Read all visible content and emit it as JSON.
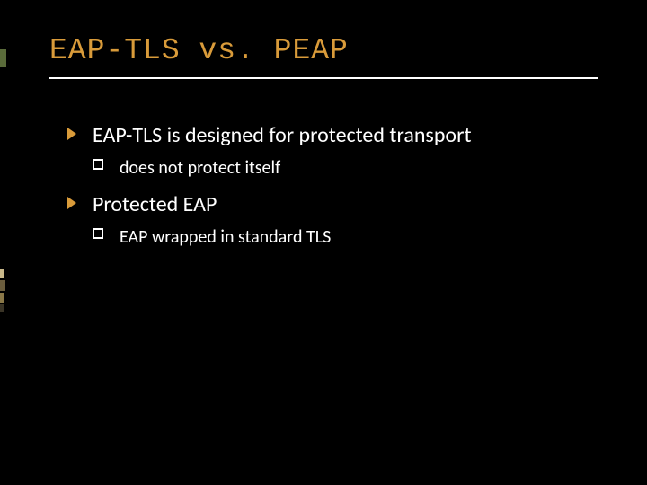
{
  "slide": {
    "title": "EAP-TLS vs. PEAP",
    "title_color": "#d99b3a",
    "title_fontsize": 33,
    "title_font": "Consolas",
    "underline_color": "#ffffff",
    "background_color": "#000000",
    "body_color": "#ffffff",
    "bullet_lvl1_color": "#d99b3a",
    "bullet_lvl2_border": "#ffffff",
    "body_fontsize_lvl1": 24,
    "body_fontsize_lvl2": 20,
    "items": [
      {
        "text": "EAP-TLS is designed for protected transport",
        "sub": [
          {
            "text": "does not protect itself"
          }
        ]
      },
      {
        "text": "Protected EAP",
        "sub": [
          {
            "text": "EAP wrapped in standard TLS"
          }
        ]
      }
    ]
  }
}
